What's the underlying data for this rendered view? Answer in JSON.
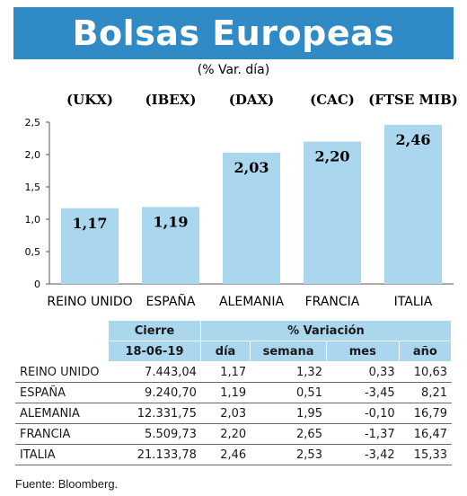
{
  "title": "Bolsas Europeas",
  "colors": {
    "title_bg": "#2f8ac6",
    "bar": "#aad6ee",
    "header_bg": "#aad6ee"
  },
  "chart_data": {
    "type": "bar",
    "subtitle": "(% Var. día)",
    "index_codes": [
      "(UKX)",
      "(IBEX)",
      "(DAX)",
      "(CAC)",
      "(FTSE MIB)"
    ],
    "categories": [
      "REINO UNIDO",
      "ESPAÑA",
      "ALEMANIA",
      "FRANCIA",
      "ITALIA"
    ],
    "values": [
      1.17,
      1.19,
      2.03,
      2.2,
      2.46
    ],
    "value_labels": [
      "1,17",
      "1,19",
      "2,03",
      "2,20",
      "2,46"
    ],
    "yticks": [
      0,
      0.5,
      1.0,
      1.5,
      2.0,
      2.5
    ],
    "ytick_labels": [
      "0",
      "0,5",
      "1,0",
      "1,5",
      "2,0",
      "2,5"
    ],
    "ylim": [
      0,
      2.5
    ],
    "grid": false
  },
  "table": {
    "header1": {
      "cierre": "Cierre",
      "variacion": "% Variación"
    },
    "header2": {
      "date": "18-06-19",
      "dia": "día",
      "semana": "semana",
      "mes": "mes",
      "ano": "año"
    },
    "rows": [
      {
        "name": "REINO UNIDO",
        "cierre": "7.443,04",
        "dia": "1,17",
        "semana": "1,32",
        "mes": "0,33",
        "ano": "10,63"
      },
      {
        "name": "ESPAÑA",
        "cierre": "9.240,70",
        "dia": "1,19",
        "semana": "0,51",
        "mes": "-3,45",
        "ano": "8,21"
      },
      {
        "name": "ALEMANIA",
        "cierre": "12.331,75",
        "dia": "2,03",
        "semana": "1,95",
        "mes": "-0,10",
        "ano": "16,79"
      },
      {
        "name": "FRANCIA",
        "cierre": "5.509,73",
        "dia": "2,20",
        "semana": "2,65",
        "mes": "-1,37",
        "ano": "16,47"
      },
      {
        "name": "ITALIA",
        "cierre": "21.133,78",
        "dia": "2,46",
        "semana": "2,53",
        "mes": "-3,42",
        "ano": "15,33"
      }
    ]
  },
  "source": "Fuente: Bloomberg."
}
